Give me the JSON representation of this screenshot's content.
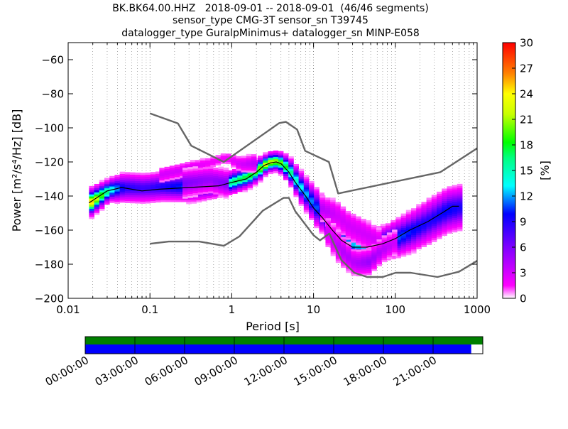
{
  "header": {
    "line1": "BK.BK64.00.HHZ   2018-09-01 -- 2018-09-01  (46/46 segments)",
    "line2": "sensor_type CMG-3T sensor_sn T39745",
    "line3": "datalogger_type GuralpMinimus+ datalogger_sn MINP-E058"
  },
  "chart_data": [
    {
      "type": "heatmap",
      "subtype": "probabilistic-power-spectral-density",
      "xlabel": "Period [s]",
      "ylabel": "Power [m²/s⁴/Hz] [dB]",
      "x_scale": "log",
      "xlim": [
        0.01,
        1000
      ],
      "ylim": [
        -200,
        -50
      ],
      "x_ticks": [
        {
          "value": 0.01,
          "label": "0.01"
        },
        {
          "value": 0.1,
          "label": "0.1"
        },
        {
          "value": 1,
          "label": "1"
        },
        {
          "value": 10,
          "label": "10"
        },
        {
          "value": 100,
          "label": "100"
        },
        {
          "value": 1000,
          "label": "1000"
        }
      ],
      "y_ticks": [
        {
          "value": -60,
          "label": "−60"
        },
        {
          "value": -80,
          "label": "−80"
        },
        {
          "value": -100,
          "label": "−100"
        },
        {
          "value": -120,
          "label": "−120"
        },
        {
          "value": -140,
          "label": "−140"
        },
        {
          "value": -160,
          "label": "−160"
        },
        {
          "value": -180,
          "label": "−180"
        },
        {
          "value": -200,
          "label": "−200"
        }
      ],
      "grid": "dotted-vertical",
      "colorbar": {
        "label": "[%]",
        "range": [
          0,
          30
        ],
        "ticks": [
          {
            "value": 0,
            "label": "0"
          },
          {
            "value": 3,
            "label": "3"
          },
          {
            "value": 6,
            "label": "6"
          },
          {
            "value": 9,
            "label": "9"
          },
          {
            "value": 12,
            "label": "12"
          },
          {
            "value": 15,
            "label": "15"
          },
          {
            "value": 18,
            "label": "18"
          },
          {
            "value": 21,
            "label": "21"
          },
          {
            "value": 24,
            "label": "24"
          },
          {
            "value": 27,
            "label": "27"
          },
          {
            "value": 30,
            "label": "30"
          }
        ],
        "colormap": "pqlx"
      },
      "series": [
        {
          "role": "new-high-noise-model",
          "color": "#666666",
          "points": [
            [
              0.1,
              -91.5
            ],
            [
              0.22,
              -97.4
            ],
            [
              0.32,
              -110.5
            ],
            [
              0.8,
              -120
            ],
            [
              3.8,
              -97.2
            ],
            [
              4.6,
              -96.5
            ],
            [
              6.3,
              -101
            ],
            [
              7.9,
              -113.5
            ],
            [
              15.4,
              -120
            ],
            [
              20,
              -138.5
            ],
            [
              354.8,
              -126
            ],
            [
              1000,
              -112
            ]
          ]
        },
        {
          "role": "new-low-noise-model",
          "color": "#666666",
          "points": [
            [
              0.1,
              -168
            ],
            [
              0.17,
              -166.7
            ],
            [
              0.4,
              -166.7
            ],
            [
              0.8,
              -169.2
            ],
            [
              1.24,
              -163.7
            ],
            [
              2.4,
              -148.6
            ],
            [
              4.3,
              -141.1
            ],
            [
              5,
              -141.1
            ],
            [
              6,
              -149
            ],
            [
              10,
              -163
            ],
            [
              12,
              -166
            ],
            [
              15.6,
              -162
            ],
            [
              21.9,
              -177.5
            ],
            [
              31.6,
              -185
            ],
            [
              45,
              -187.5
            ],
            [
              70,
              -187.5
            ],
            [
              101,
              -185
            ],
            [
              154,
              -185
            ],
            [
              328,
              -187.5
            ],
            [
              600,
              -184.4
            ],
            [
              1000,
              -178
            ]
          ]
        },
        {
          "role": "mean",
          "color": "#000000",
          "points": [
            [
              0.018,
              -144
            ],
            [
              0.03,
              -137
            ],
            [
              0.045,
              -135
            ],
            [
              0.08,
              -137
            ],
            [
              0.13,
              -136
            ],
            [
              0.3,
              -135
            ],
            [
              0.7,
              -134
            ],
            [
              1,
              -132
            ],
            [
              1.5,
              -130
            ],
            [
              2,
              -126
            ],
            [
              2.5,
              -122
            ],
            [
              3,
              -120.5
            ],
            [
              3.5,
              -120
            ],
            [
              4,
              -121
            ],
            [
              5,
              -126
            ],
            [
              6,
              -132
            ],
            [
              8,
              -140
            ],
            [
              10,
              -147
            ],
            [
              13,
              -153
            ],
            [
              17,
              -160
            ],
            [
              22,
              -166
            ],
            [
              30,
              -170
            ],
            [
              45,
              -170
            ],
            [
              70,
              -168
            ],
            [
              100,
              -165
            ],
            [
              150,
              -160
            ],
            [
              250,
              -155
            ],
            [
              400,
              -149
            ],
            [
              500,
              -146
            ],
            [
              600,
              -146
            ]
          ]
        }
      ],
      "density_bands": [
        {
          "points": [
            [
              0.018,
              -144,
              3.5,
              25
            ],
            [
              0.03,
              -137,
              3,
              15
            ],
            [
              0.045,
              -135.5,
              4,
              9
            ],
            [
              0.08,
              -136,
              4,
              8
            ],
            [
              0.13,
              -135,
              4,
              9
            ],
            [
              0.3,
              -135,
              4,
              11
            ],
            [
              0.7,
              -134,
              3,
              15
            ],
            [
              1,
              -132,
              3,
              17
            ],
            [
              1.5,
              -129,
              3,
              18
            ],
            [
              2,
              -125,
              3,
              20
            ],
            [
              2.5,
              -121.5,
              2.5,
              23
            ],
            [
              3,
              -120,
              2.5,
              22
            ],
            [
              3.5,
              -120.5,
              2.5,
              21
            ],
            [
              4,
              -122,
              3,
              19
            ],
            [
              5,
              -127,
              3.5,
              16
            ],
            [
              6,
              -133,
              4,
              14
            ],
            [
              8,
              -141,
              4.5,
              12
            ],
            [
              10,
              -147,
              5,
              11
            ],
            [
              13,
              -153,
              5,
              10
            ],
            [
              17,
              -160,
              5.5,
              10
            ],
            [
              22,
              -166,
              5,
              11
            ],
            [
              30,
              -169.5,
              4,
              13
            ],
            [
              45,
              -169.5,
              4,
              13
            ],
            [
              70,
              -168,
              4.5,
              12
            ],
            [
              100,
              -165,
              5,
              11
            ],
            [
              150,
              -161,
              5.5,
              10
            ],
            [
              250,
              -155,
              6,
              9
            ],
            [
              400,
              -149,
              6,
              10
            ],
            [
              600,
              -147,
              6,
              9
            ]
          ]
        },
        {
          "points": [
            [
              0.13,
              -128,
              2.5,
              3
            ],
            [
              0.25,
              -125,
              2.5,
              3
            ],
            [
              0.5,
              -121,
              2,
              2
            ],
            [
              0.8,
              -118,
              2,
              2
            ],
            [
              1.2,
              -122,
              2.5,
              3
            ],
            [
              2,
              -121,
              3,
              4
            ]
          ]
        },
        {
          "points": [
            [
              0.25,
              -133,
              4,
              6
            ],
            [
              0.5,
              -131,
              4,
              5
            ],
            [
              0.8,
              -133,
              4,
              6
            ]
          ]
        },
        {
          "points": [
            [
              12,
              -148,
              4,
              4
            ],
            [
              18,
              -152,
              5,
              3
            ],
            [
              25,
              -158,
              5,
              3
            ],
            [
              40,
              -163,
              5,
              3
            ],
            [
              60,
              -167,
              4,
              3
            ]
          ]
        },
        {
          "points": [
            [
              14,
              -162,
              5,
              3
            ],
            [
              20,
              -172,
              5,
              4
            ],
            [
              30,
              -180,
              4,
              4
            ],
            [
              45,
              -179,
              4,
              5
            ],
            [
              65,
              -172,
              4,
              4
            ],
            [
              100,
              -167,
              4,
              3
            ]
          ]
        }
      ],
      "pqlx_colors": [
        [
          0,
          "#ffffff"
        ],
        [
          0.05,
          "#ff00ff"
        ],
        [
          0.2,
          "#7f00ff"
        ],
        [
          0.33,
          "#0000ff"
        ],
        [
          0.44,
          "#00ffff"
        ],
        [
          0.55,
          "#00ff7f"
        ],
        [
          0.61,
          "#00ff00"
        ],
        [
          0.72,
          "#c8ff00"
        ],
        [
          0.8,
          "#ffff00"
        ],
        [
          0.88,
          "#ff8000"
        ],
        [
          1,
          "#ff0000"
        ]
      ]
    },
    {
      "type": "timeline",
      "time_ticks": [
        "00:00:00",
        "03:00:00",
        "06:00:00",
        "09:00:00",
        "12:00:00",
        "15:00:00",
        "18:00:00",
        "21:00:00"
      ],
      "bars": [
        {
          "role": "data-coverage",
          "color": "#008000",
          "start_hour": 0,
          "end_hour": 24
        },
        {
          "role": "psd-coverage",
          "color": "#0000ff",
          "start_hour": 0,
          "end_hour": 23.3
        }
      ]
    }
  ]
}
